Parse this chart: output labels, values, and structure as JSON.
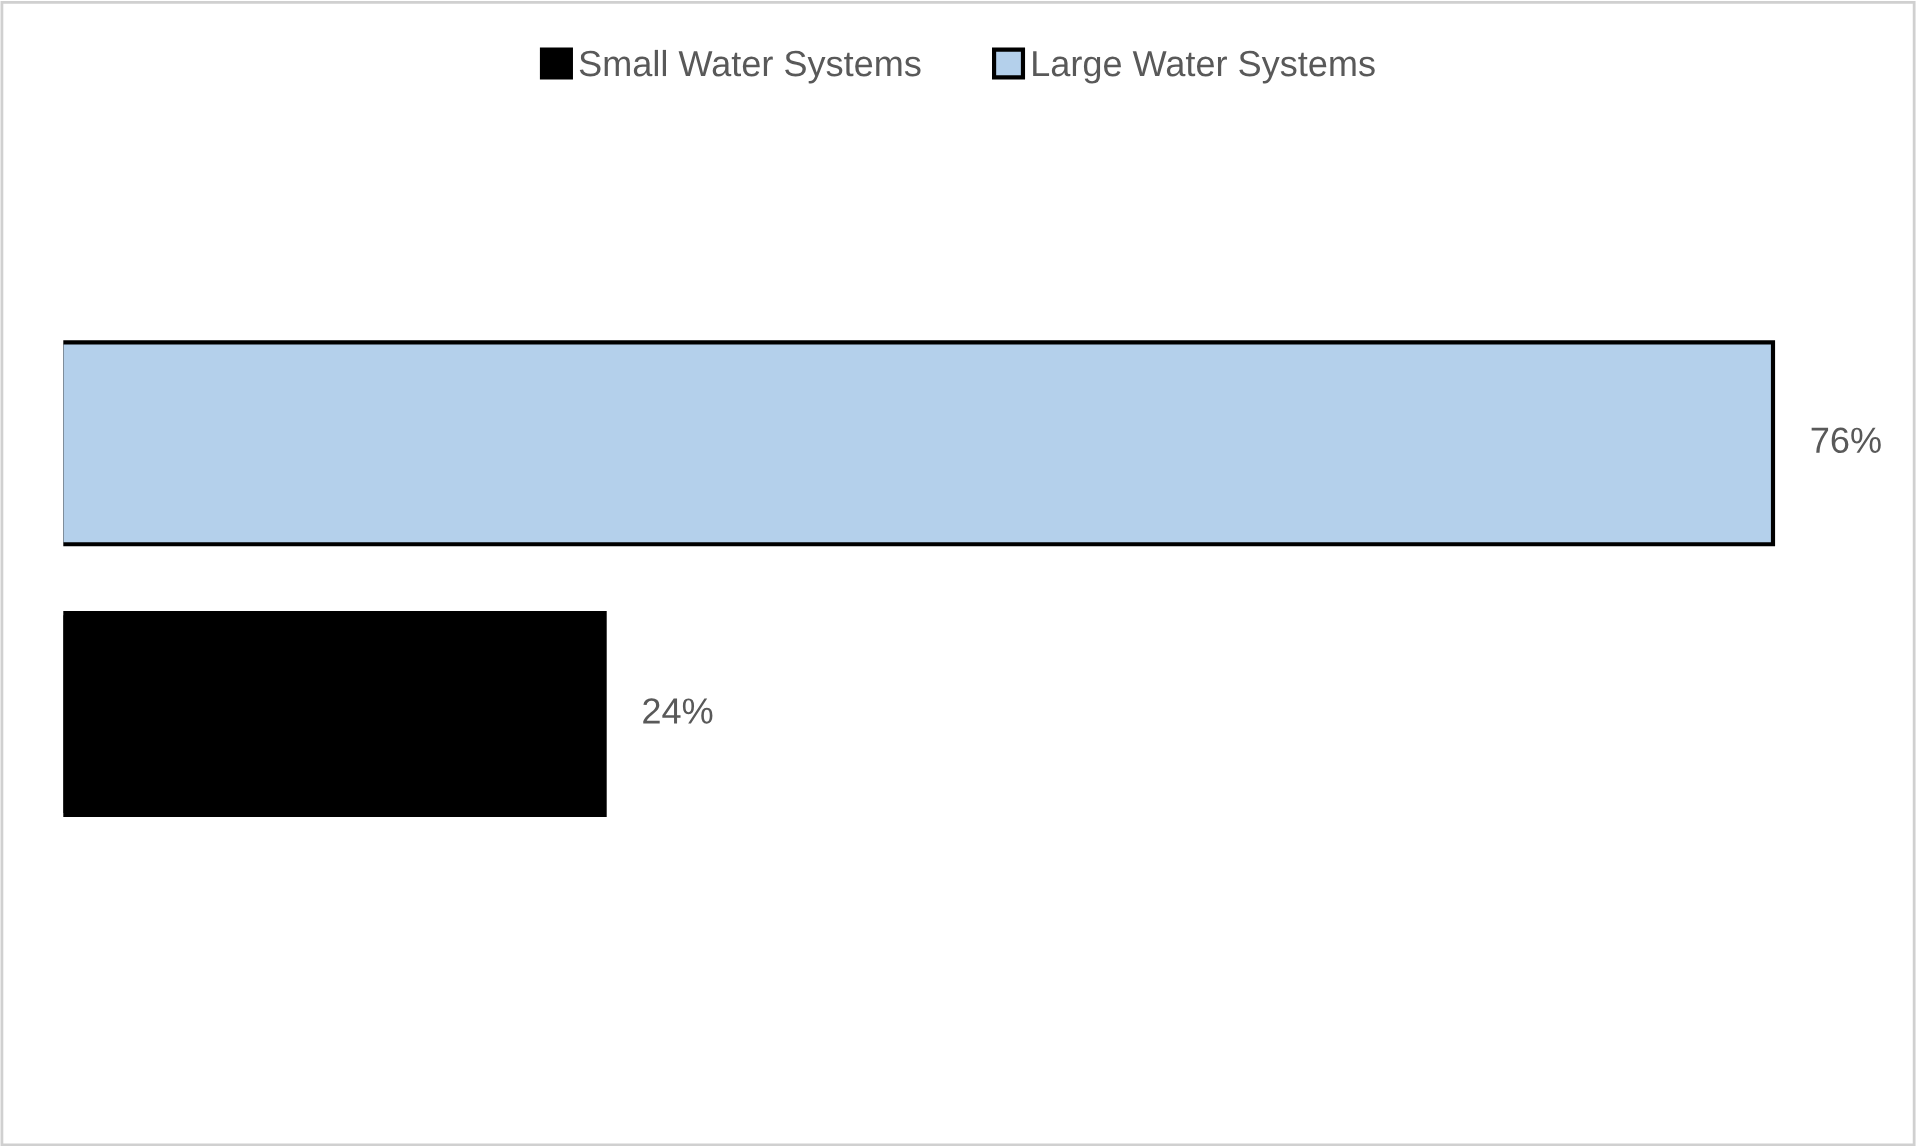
{
  "chart_data": {
    "type": "bar",
    "orientation": "horizontal",
    "categories": [
      null
    ],
    "series": [
      {
        "name": "Large Water Systems",
        "color": "#b4d0eb",
        "values": [
          76
        ],
        "value_labels": [
          "76%"
        ]
      },
      {
        "name": "Small Water Systems",
        "color": "#000000",
        "values": [
          24
        ],
        "value_labels": [
          "24%"
        ]
      }
    ],
    "legend": "top",
    "grid": false
  }
}
